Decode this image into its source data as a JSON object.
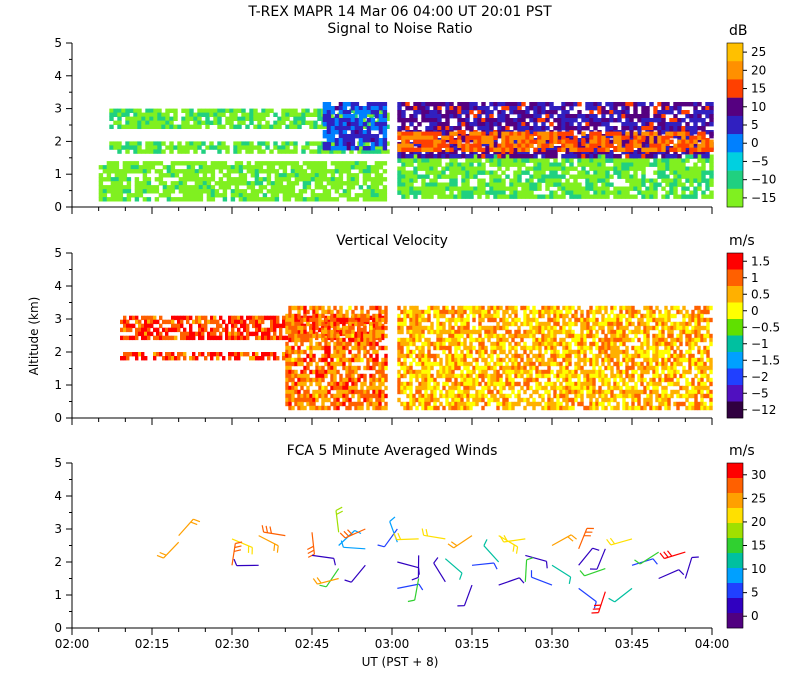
{
  "header": {
    "title": "T-REX   MAPR 14 Mar 06   04:00 UT   20:01   PST",
    "panel1_title": "Signal to Noise Ratio",
    "panel2_title": "Vertical Velocity",
    "panel3_title": "FCA 5 Minute Averaged Winds"
  },
  "axes": {
    "ylabel": "Altitude (km)",
    "xlabel": "UT  (PST + 8)",
    "x_ticks": [
      "02:00",
      "02:15",
      "02:30",
      "02:45",
      "03:00",
      "03:15",
      "03:30",
      "03:45",
      "04:00"
    ],
    "y_ticks": [
      "0",
      "1",
      "2",
      "3",
      "4",
      "5"
    ],
    "xlim": [
      "02:00",
      "04:00"
    ],
    "ylim": [
      0,
      5
    ]
  },
  "colorbars": {
    "snr": {
      "unit": "dB",
      "labels": [
        "25",
        "20",
        "15",
        "10",
        "5",
        "0",
        "−5",
        "−10",
        "−15"
      ],
      "colors": [
        "#ffc000",
        "#ff9000",
        "#ff4000",
        "#550080",
        "#3020c0",
        "#0080ff",
        "#00d0e0",
        "#20d080",
        "#80f020"
      ]
    },
    "velocity": {
      "unit": "m/s",
      "labels": [
        "1.5",
        "1",
        "0.5",
        "0",
        "−0.5",
        "−1",
        "−1.5",
        "−2",
        "−5",
        "−12"
      ],
      "colors": [
        "#ff0000",
        "#ff6000",
        "#ffb000",
        "#ffff00",
        "#60e000",
        "#00c0a0",
        "#00a0ff",
        "#2040ff",
        "#5010c0",
        "#300040"
      ]
    },
    "wind": {
      "unit": "m/s",
      "labels": [
        "30",
        "25",
        "20",
        "15",
        "10",
        "5",
        "0"
      ],
      "colors": [
        "#ff0000",
        "#ff6000",
        "#ffa000",
        "#ffe000",
        "#a0e000",
        "#30d030",
        "#00c0a0",
        "#00a0ff",
        "#2040ff",
        "#3000c0",
        "#500080"
      ]
    }
  },
  "chart_data": [
    {
      "type": "heatmap",
      "title": "Signal to Noise Ratio",
      "ylabel": "",
      "xlabel": "",
      "ylim": [
        0,
        5
      ],
      "colorbar_range": [
        -15,
        25
      ],
      "data_gap": [
        "02:59",
        "03:01"
      ],
      "layers": [
        {
          "t0": "02:07",
          "t1": "02:59",
          "z0": 2.4,
          "z1": 3.0,
          "level": -12
        },
        {
          "t0": "02:07",
          "t1": "02:59",
          "z0": 1.7,
          "z1": 2.0,
          "level": -12
        },
        {
          "t0": "02:05",
          "t1": "02:59",
          "z0": 0.3,
          "z1": 1.4,
          "level": -14
        },
        {
          "t0": "02:47",
          "t1": "02:59",
          "z0": 1.8,
          "z1": 3.2,
          "level": 3
        },
        {
          "t0": "03:01",
          "t1": "04:00",
          "z0": 0.3,
          "z1": 1.6,
          "level": -12
        },
        {
          "t0": "03:01",
          "t1": "04:00",
          "z0": 1.5,
          "z1": 3.2,
          "level": 8
        },
        {
          "t0": "03:01",
          "t1": "04:00",
          "z0": 1.8,
          "z1": 2.3,
          "level": 16
        }
      ]
    },
    {
      "type": "heatmap",
      "title": "Vertical Velocity",
      "ylabel": "Altitude (km)",
      "xlabel": "",
      "ylim": [
        0,
        5
      ],
      "colorbar_range": [
        -12,
        1.5
      ],
      "data_gap": [
        "02:59",
        "03:01"
      ],
      "layers": [
        {
          "t0": "02:09",
          "t1": "02:59",
          "z0": 2.4,
          "z1": 3.1,
          "level": 0
        },
        {
          "t0": "02:09",
          "t1": "02:40",
          "z0": 1.8,
          "z1": 2.0,
          "level": 0
        },
        {
          "t0": "02:40",
          "t1": "02:59",
          "z0": 0.3,
          "z1": 3.4,
          "level": -1
        },
        {
          "t0": "03:01",
          "t1": "04:00",
          "z0": 0.3,
          "z1": 3.4,
          "level": -2
        }
      ]
    },
    {
      "type": "scatter",
      "title": "FCA 5 Minute Averaged Winds",
      "xlabel": "UT  (PST + 8)",
      "ylabel": "",
      "ylim": [
        0,
        5
      ],
      "colorbar_range": [
        0,
        30
      ],
      "barbs": [
        {
          "t": "02:20",
          "z": 2.8,
          "speed": 24
        },
        {
          "t": "02:20",
          "z": 2.6,
          "speed": 24
        },
        {
          "t": "02:30",
          "z": 2.7,
          "speed": 21
        },
        {
          "t": "02:30",
          "z": 1.9,
          "speed": 25
        },
        {
          "t": "02:35",
          "z": 2.8,
          "speed": 24
        },
        {
          "t": "02:35",
          "z": 1.9,
          "speed": 3
        },
        {
          "t": "02:40",
          "z": 2.8,
          "speed": 26
        },
        {
          "t": "02:45",
          "z": 2.9,
          "speed": 27
        },
        {
          "t": "02:45",
          "z": 2.2,
          "speed": 5
        },
        {
          "t": "02:50",
          "z": 2.9,
          "speed": 18
        },
        {
          "t": "02:50",
          "z": 2.5,
          "speed": 10
        },
        {
          "t": "02:50",
          "z": 1.8,
          "speed": 14
        },
        {
          "t": "02:50",
          "z": 1.5,
          "speed": 22
        },
        {
          "t": "02:55",
          "z": 3.0,
          "speed": 25
        },
        {
          "t": "02:55",
          "z": 2.4,
          "speed": 10
        },
        {
          "t": "02:55",
          "z": 1.9,
          "speed": 5
        },
        {
          "t": "03:01",
          "z": 3.0,
          "speed": 8
        },
        {
          "t": "03:01",
          "z": 2.6,
          "speed": 10
        },
        {
          "t": "03:01",
          "z": 2.0,
          "speed": 4
        },
        {
          "t": "03:01",
          "z": 1.2,
          "speed": 6
        },
        {
          "t": "03:05",
          "z": 2.7,
          "speed": 20
        },
        {
          "t": "03:05",
          "z": 2.2,
          "speed": 3
        },
        {
          "t": "03:05",
          "z": 1.5,
          "speed": 14
        },
        {
          "t": "03:10",
          "z": 2.7,
          "speed": 20
        },
        {
          "t": "03:10",
          "z": 2.1,
          "speed": 11
        },
        {
          "t": "03:10",
          "z": 1.4,
          "speed": 4
        },
        {
          "t": "03:15",
          "z": 2.8,
          "speed": 22
        },
        {
          "t": "03:15",
          "z": 1.9,
          "speed": 8
        },
        {
          "t": "03:15",
          "z": 1.3,
          "speed": 5
        },
        {
          "t": "03:20",
          "z": 2.8,
          "speed": 21
        },
        {
          "t": "03:20",
          "z": 2.0,
          "speed": 12
        },
        {
          "t": "03:20",
          "z": 1.3,
          "speed": 3
        },
        {
          "t": "03:25",
          "z": 2.7,
          "speed": 20
        },
        {
          "t": "03:25",
          "z": 2.2,
          "speed": 4
        },
        {
          "t": "03:25",
          "z": 1.4,
          "speed": 14
        },
        {
          "t": "03:30",
          "z": 2.5,
          "speed": 22
        },
        {
          "t": "03:30",
          "z": 1.9,
          "speed": 12
        },
        {
          "t": "03:30",
          "z": 1.3,
          "speed": 8
        },
        {
          "t": "03:35",
          "z": 2.4,
          "speed": 25
        },
        {
          "t": "03:35",
          "z": 1.9,
          "speed": 4
        },
        {
          "t": "03:35",
          "z": 1.2,
          "speed": 6
        },
        {
          "t": "03:40",
          "z": 2.4,
          "speed": 3
        },
        {
          "t": "03:40",
          "z": 1.8,
          "speed": 14
        },
        {
          "t": "03:40",
          "z": 1.1,
          "speed": 30
        },
        {
          "t": "03:45",
          "z": 2.7,
          "speed": 20
        },
        {
          "t": "03:45",
          "z": 1.9,
          "speed": 6
        },
        {
          "t": "03:45",
          "z": 1.2,
          "speed": 13
        },
        {
          "t": "03:50",
          "z": 2.3,
          "speed": 14
        },
        {
          "t": "03:50",
          "z": 1.5,
          "speed": 5
        },
        {
          "t": "03:55",
          "z": 2.3,
          "speed": 28
        },
        {
          "t": "03:55",
          "z": 1.5,
          "speed": 3
        }
      ]
    }
  ]
}
